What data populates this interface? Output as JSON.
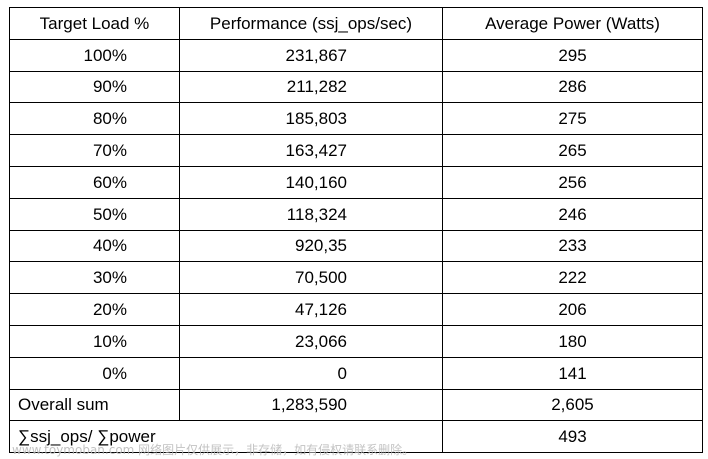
{
  "table": {
    "headers": [
      "Target Load %",
      "Performance (ssj_ops/sec)",
      "Average Power (Watts)"
    ],
    "rows": [
      {
        "load": "100%",
        "performance": "231,867",
        "power": "295"
      },
      {
        "load": "90%",
        "performance": "211,282",
        "power": "286"
      },
      {
        "load": "80%",
        "performance": "185,803",
        "power": "275"
      },
      {
        "load": "70%",
        "performance": "163,427",
        "power": "265"
      },
      {
        "load": "60%",
        "performance": "140,160",
        "power": "256"
      },
      {
        "load": "50%",
        "performance": "118,324",
        "power": "246"
      },
      {
        "load": "40%",
        "performance": "920,35",
        "power": "233"
      },
      {
        "load": "30%",
        "performance": "70,500",
        "power": "222"
      },
      {
        "load": "20%",
        "performance": "47,126",
        "power": "206"
      },
      {
        "load": "10%",
        "performance": "23,066",
        "power": "180"
      },
      {
        "load": "0%",
        "performance": "0",
        "power": "141"
      }
    ],
    "overall": {
      "label": "Overall sum",
      "performance": "1,283,590",
      "power": "2,605"
    },
    "ratio": {
      "label": "∑ssj_ops/ ∑power",
      "value": "493"
    }
  },
  "watermark": "www.toymoban.com 网络图片仅供展示，非存储，如有侵权请联系删除。"
}
